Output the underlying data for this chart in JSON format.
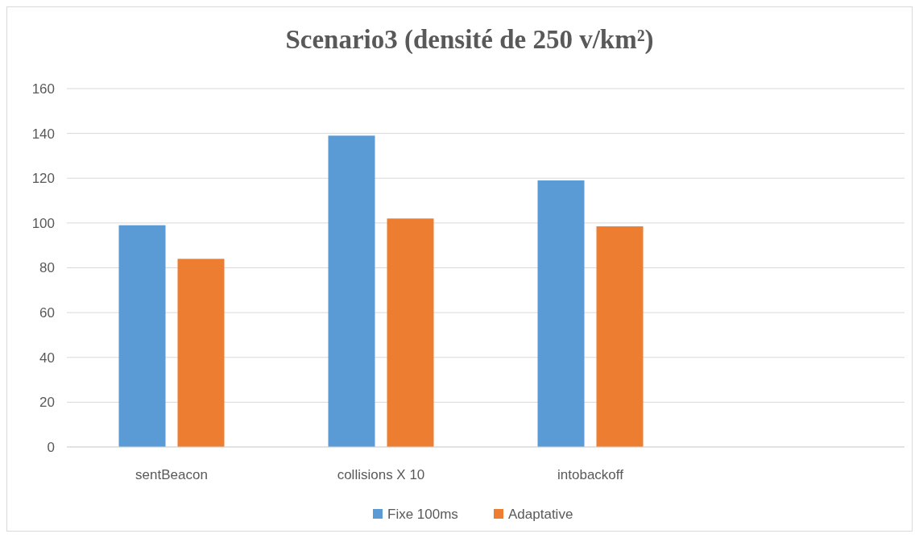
{
  "chart_data": {
    "type": "bar",
    "title": "Scenario3 (densité de 250 v/km²)",
    "categories": [
      "sentBeacon",
      "collisions X 10",
      "intobackoff",
      null
    ],
    "series": [
      {
        "name": "Fixe 100ms",
        "color": "#5b9bd5",
        "values": [
          99,
          139,
          119,
          null
        ]
      },
      {
        "name": "Adaptative",
        "color": "#ed7d31",
        "values": [
          84,
          102,
          98.5,
          null
        ]
      }
    ],
    "ylim": [
      0,
      160
    ],
    "yticks": [
      0,
      20,
      40,
      60,
      80,
      100,
      120,
      140,
      160
    ],
    "grid": "y",
    "legend": "bottom"
  }
}
